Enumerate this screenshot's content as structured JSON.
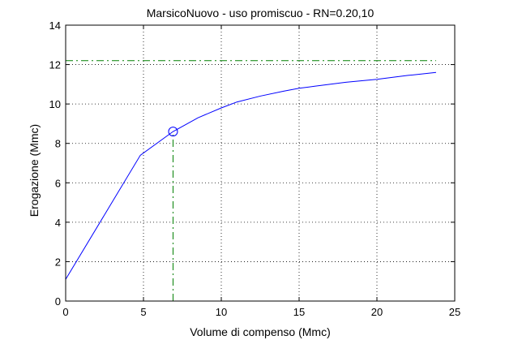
{
  "chart_data": {
    "type": "line",
    "title": "MarsicoNuovo  -  uso promiscuo  -   RN=0.20,10",
    "xlabel": "Volume di compenso (Mmc)",
    "ylabel": "Erogazione (Mmc)",
    "xlim": [
      0,
      25
    ],
    "ylim": [
      0,
      14
    ],
    "xticks": [
      0,
      5,
      10,
      15,
      20,
      25
    ],
    "yticks": [
      0,
      2,
      4,
      6,
      8,
      10,
      12,
      14
    ],
    "grid": true,
    "grid_style": "dotted",
    "series": [
      {
        "color": "#0000ff",
        "style": "solid",
        "x": [
          0,
          4.8,
          6.9,
          8.5,
          10,
          11,
          12.5,
          14,
          15,
          16,
          18,
          20,
          22,
          23.8
        ],
        "y": [
          1.1,
          7.4,
          8.6,
          9.3,
          9.8,
          10.1,
          10.4,
          10.65,
          10.8,
          10.9,
          11.1,
          11.25,
          11.45,
          11.6
        ]
      }
    ],
    "reference_lines": [
      {
        "kind": "horizontal",
        "y": 12.2,
        "x_range": [
          0,
          23.8
        ],
        "color": "#008000",
        "style": "dash-dot"
      },
      {
        "kind": "vertical",
        "x": 6.9,
        "y_range": [
          0,
          8.6
        ],
        "color": "#008000",
        "style": "dash-dot"
      }
    ],
    "marker": {
      "x": 6.9,
      "y": 8.6,
      "shape": "circle",
      "color": "#0000ff"
    }
  }
}
